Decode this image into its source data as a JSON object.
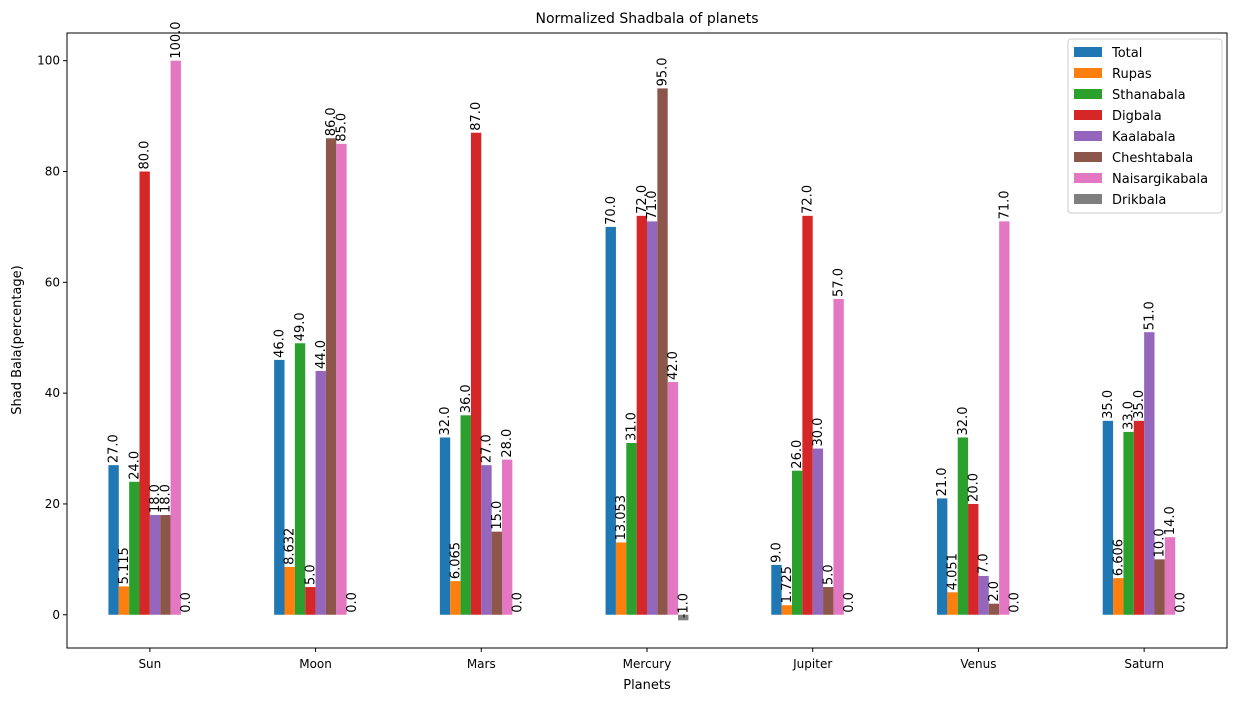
{
  "chart_data": {
    "type": "bar",
    "title": "Normalized Shadbala of planets",
    "xlabel": "Planets",
    "ylabel": "Shad Bala(percentage)",
    "ylim": [
      -6,
      105
    ],
    "yticks": [
      0,
      20,
      40,
      60,
      80,
      100
    ],
    "legend_position": "top-right",
    "categories": [
      "Sun",
      "Moon",
      "Mars",
      "Mercury",
      "Jupiter",
      "Venus",
      "Saturn"
    ],
    "series": [
      {
        "name": "Total",
        "color": "#1f77b4",
        "values": [
          27,
          46,
          32,
          70,
          9,
          21,
          35
        ],
        "labels": [
          "27.0",
          "46.0",
          "32.0",
          "70.0",
          "9.0",
          "21.0",
          "35.0"
        ]
      },
      {
        "name": "Rupas",
        "color": "#ff7f0e",
        "values": [
          5.115,
          8.632,
          6.065,
          13.053,
          1.725,
          4.051,
          6.606
        ],
        "labels": [
          "5.115",
          "8.632",
          "6.065",
          "13.053",
          "1.725",
          "4.051",
          "6.606"
        ]
      },
      {
        "name": "Sthanabala",
        "color": "#2ca02c",
        "values": [
          24,
          49,
          36,
          31,
          26,
          32,
          33
        ],
        "labels": [
          "24.0",
          "49.0",
          "36.0",
          "31.0",
          "26.0",
          "32.0",
          "33.0"
        ]
      },
      {
        "name": "Digbala",
        "color": "#d62728",
        "values": [
          80,
          5,
          87,
          72,
          72,
          20,
          35
        ],
        "labels": [
          "80.0",
          "5.0",
          "87.0",
          "72.0",
          "72.0",
          "20.0",
          "35.0"
        ]
      },
      {
        "name": "Kaalabala",
        "color": "#9467bd",
        "values": [
          18,
          44,
          27,
          71,
          30,
          7,
          51
        ],
        "labels": [
          "18.0",
          "44.0",
          "27.0",
          "71.0",
          "30.0",
          "7.0",
          "51.0"
        ]
      },
      {
        "name": "Cheshtabala",
        "color": "#8c564b",
        "values": [
          18,
          86,
          15,
          95,
          5,
          2,
          10
        ],
        "labels": [
          "18.0",
          "86.0",
          "15.0",
          "95.0",
          "5.0",
          "2.0",
          "10.0"
        ]
      },
      {
        "name": "Naisargikabala",
        "color": "#e377c2",
        "values": [
          100,
          85,
          28,
          42,
          57,
          71,
          14
        ],
        "labels": [
          "100.0",
          "85.0",
          "28.0",
          "42.0",
          "57.0",
          "71.0",
          "14.0"
        ]
      },
      {
        "name": "Drikbala",
        "color": "#7f7f7f",
        "values": [
          0,
          0,
          0,
          -1,
          0,
          0,
          0
        ],
        "labels": [
          "0.0",
          "0.0",
          "0.0",
          "-1.0",
          "0.0",
          "0.0",
          "0.0"
        ]
      }
    ]
  }
}
